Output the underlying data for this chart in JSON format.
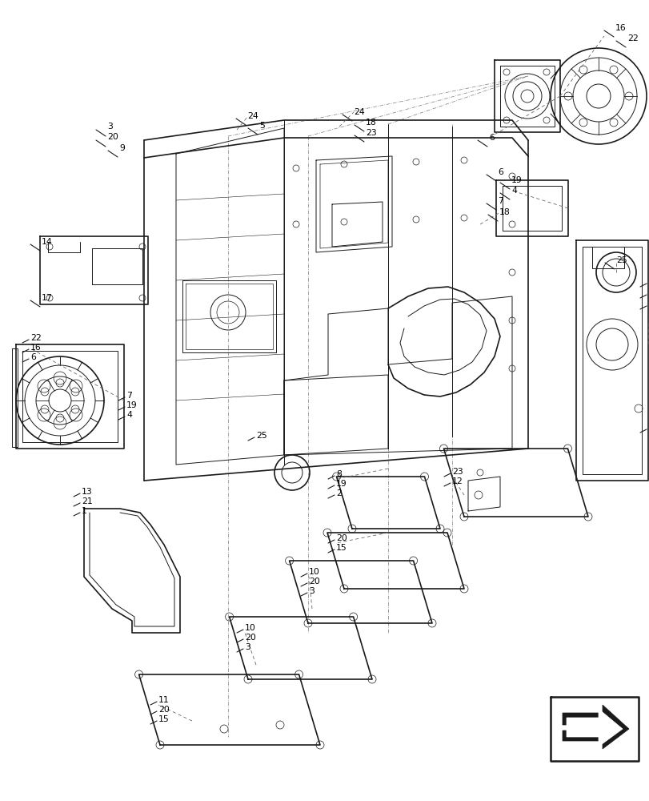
{
  "bg_color": "#ffffff",
  "line_color": "#1a1a1a",
  "label_color": "#000000",
  "fig_width": 8.12,
  "fig_height": 10.0
}
